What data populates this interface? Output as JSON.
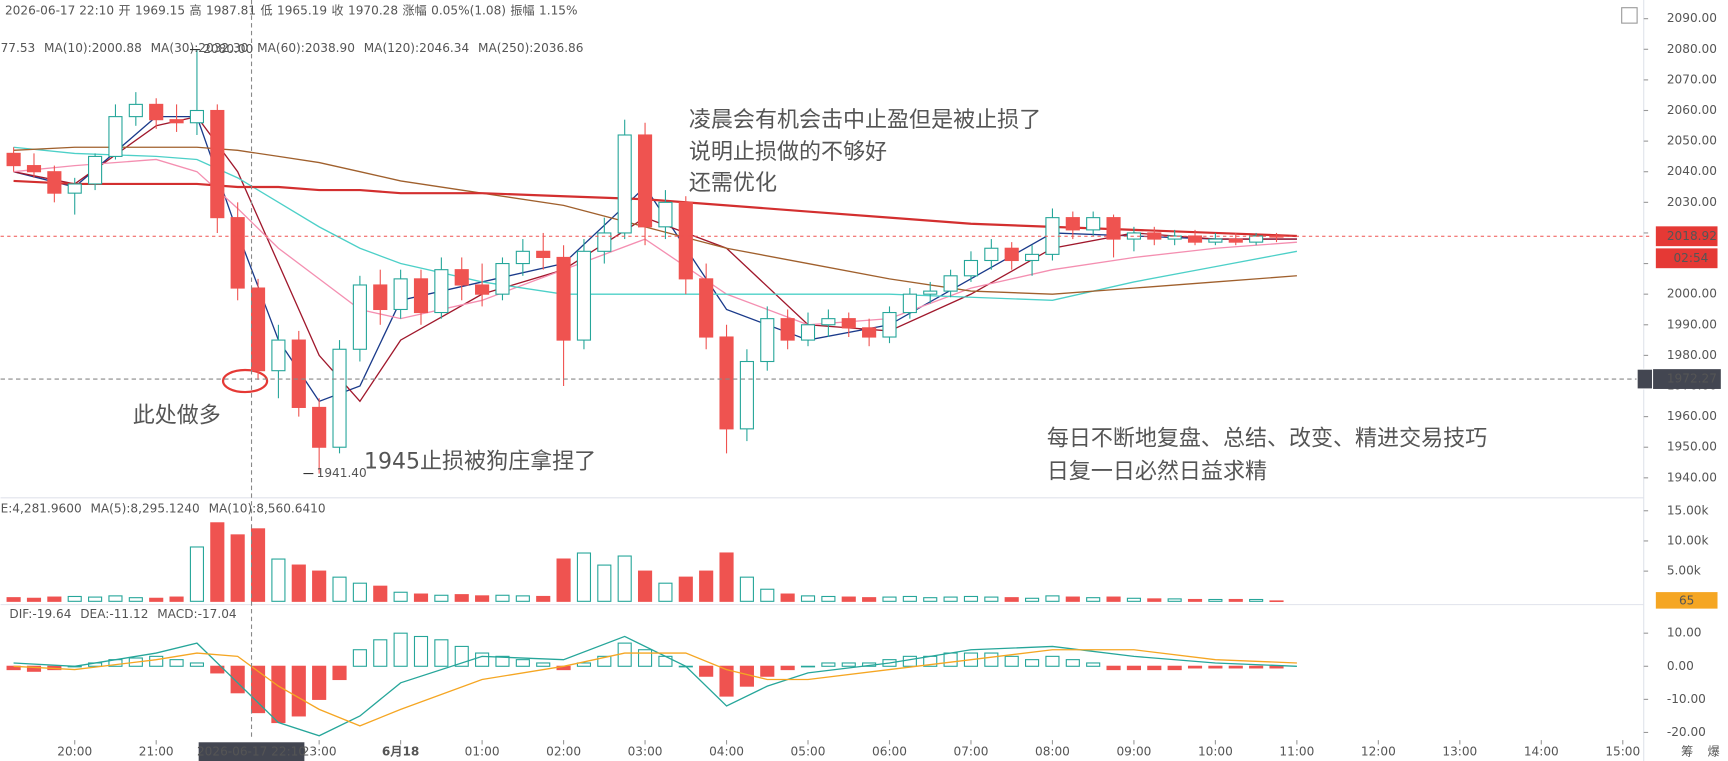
{
  "toolbar": {
    "quote": [
      "2026-06-17 22:10",
      "开",
      "1969.15",
      "高",
      "1987.81",
      "低",
      "1965.19",
      "收",
      "1970.28",
      "涨幅",
      "0.05%(1.08)",
      "振幅",
      "1.15%"
    ],
    "countdown": "02:54",
    "crosshair_time": "2026-06-17 22:10",
    "side_labels": [
      "筹",
      "爆"
    ]
  },
  "chart_data": [
    {
      "type": "candlestick",
      "up_color": "#26a69a",
      "down_color": "#ef5350",
      "x": [
        19.25,
        19.5,
        19.75,
        20,
        20.25,
        20.5,
        20.75,
        21,
        21.25,
        21.5,
        21.75,
        22,
        22.25,
        22.5,
        22.75,
        23,
        23.25,
        23.5,
        23.75,
        24,
        24.25,
        24.5,
        24.75,
        25,
        25.25,
        25.5,
        25.75,
        26,
        26.25,
        26.5,
        26.75,
        27,
        27.25,
        27.5,
        27.75,
        28,
        28.25,
        28.5,
        28.75,
        29,
        29.25,
        29.5,
        29.75,
        30,
        30.25,
        30.5,
        30.75,
        31,
        31.25,
        31.5,
        31.75,
        32,
        32.25,
        32.5,
        32.75,
        33,
        33.25,
        33.5,
        33.75,
        34,
        34.25,
        34.5,
        34.75
      ],
      "ohlc": [
        [
          2046,
          2048,
          2040,
          2042
        ],
        [
          2042,
          2046,
          2038,
          2040
        ],
        [
          2040,
          2042,
          2030,
          2033
        ],
        [
          2033,
          2038,
          2026,
          2036
        ],
        [
          2036,
          2046,
          2034,
          2045
        ],
        [
          2045,
          2062,
          2044,
          2058
        ],
        [
          2058,
          2066,
          2055,
          2062
        ],
        [
          2062,
          2064,
          2054,
          2057
        ],
        [
          2057,
          2062,
          2053,
          2056
        ],
        [
          2056,
          2080,
          2052,
          2060
        ],
        [
          2060,
          2062,
          2020,
          2025
        ],
        [
          2025,
          2030,
          1998,
          2002
        ],
        [
          2002,
          2005,
          1972,
          1975
        ],
        [
          1975,
          1990,
          1966,
          1985
        ],
        [
          1985,
          1988,
          1960,
          1963
        ],
        [
          1963,
          1966,
          1941.4,
          1950
        ],
        [
          1950,
          1985,
          1948,
          1982
        ],
        [
          1982,
          2006,
          1978,
          2003
        ],
        [
          2003,
          2008,
          1990,
          1995
        ],
        [
          1995,
          2008,
          1992,
          2005
        ],
        [
          2005,
          2008,
          1990,
          1994
        ],
        [
          1994,
          2012,
          1992,
          2008
        ],
        [
          2008,
          2012,
          1998,
          2003
        ],
        [
          2003,
          2010,
          1996,
          2000
        ],
        [
          2000,
          2012,
          1998,
          2010
        ],
        [
          2010,
          2018,
          2006,
          2014
        ],
        [
          2014,
          2020,
          2008,
          2012
        ],
        [
          2012,
          2016,
          1970,
          1985
        ],
        [
          1985,
          2018,
          1982,
          2014
        ],
        [
          2014,
          2025,
          2010,
          2020
        ],
        [
          2020,
          2057,
          2018,
          2052
        ],
        [
          2052,
          2056,
          2016,
          2022
        ],
        [
          2022,
          2034,
          2018,
          2030
        ],
        [
          2030,
          2032,
          2000,
          2005
        ],
        [
          2005,
          2010,
          1982,
          1986
        ],
        [
          1986,
          1990,
          1948,
          1956
        ],
        [
          1956,
          1982,
          1952,
          1978
        ],
        [
          1978,
          1996,
          1975,
          1992
        ],
        [
          1992,
          1995,
          1982,
          1985
        ],
        [
          1985,
          1994,
          1983,
          1990
        ],
        [
          1990,
          1995,
          1986,
          1992
        ],
        [
          1992,
          1994,
          1986,
          1989
        ],
        [
          1989,
          1992,
          1983,
          1986
        ],
        [
          1986,
          1996,
          1984,
          1994
        ],
        [
          1994,
          2002,
          1992,
          2000
        ],
        [
          2000,
          2004,
          1997,
          2001
        ],
        [
          2001,
          2008,
          1999,
          2006
        ],
        [
          2006,
          2014,
          2004,
          2011
        ],
        [
          2011,
          2018,
          2008,
          2015
        ],
        [
          2015,
          2017,
          2008,
          2011
        ],
        [
          2011,
          2016,
          2006,
          2013
        ],
        [
          2013,
          2028,
          2011,
          2025
        ],
        [
          2025,
          2027,
          2018,
          2021
        ],
        [
          2021,
          2027,
          2019,
          2025
        ],
        [
          2025,
          2026,
          2012,
          2018
        ],
        [
          2018,
          2022,
          2014,
          2020
        ],
        [
          2020,
          2022,
          2016,
          2018
        ],
        [
          2018,
          2021,
          2016,
          2019
        ],
        [
          2019,
          2021,
          2016,
          2017
        ],
        [
          2017,
          2020,
          2016,
          2018
        ],
        [
          2018,
          2020,
          2016,
          2017
        ],
        [
          2017,
          2020,
          2016,
          2019
        ],
        [
          2019,
          2020,
          2017,
          2018.92
        ]
      ],
      "xlim": [
        19.09,
        39.23
      ],
      "xticks": [
        {
          "value": 20,
          "label": "20:00"
        },
        {
          "value": 21,
          "label": "21:00"
        },
        {
          "value": 23,
          "label": "23:00"
        },
        {
          "value": 24,
          "label": "6月18"
        },
        {
          "value": 25,
          "label": "01:00"
        },
        {
          "value": 26,
          "label": "02:00"
        },
        {
          "value": 27,
          "label": "03:00"
        },
        {
          "value": 28,
          "label": "04:00"
        },
        {
          "value": 29,
          "label": "05:00"
        },
        {
          "value": 30,
          "label": "06:00"
        },
        {
          "value": 31,
          "label": "07:00"
        },
        {
          "value": 32,
          "label": "08:00"
        },
        {
          "value": 33,
          "label": "09:00"
        },
        {
          "value": 34,
          "label": "10:00"
        },
        {
          "value": 35,
          "label": "11:00"
        },
        {
          "value": 36,
          "label": "12:00"
        },
        {
          "value": 37,
          "label": "13:00"
        },
        {
          "value": 38,
          "label": "14:00"
        },
        {
          "value": 39,
          "label": "15:00"
        }
      ],
      "ylim": [
        1934.2,
        2096.1
      ],
      "yticks": [
        {
          "value": 1940,
          "label": "1940.00"
        },
        {
          "value": 1950,
          "label": "1950.00"
        },
        {
          "value": 1960,
          "label": "1960.00"
        },
        {
          "value": 1970,
          "label": "1970.00"
        },
        {
          "value": 1980,
          "label": "1980.00"
        },
        {
          "value": 1990,
          "label": "1990.00"
        },
        {
          "value": 2000,
          "label": "2000.00"
        },
        {
          "value": 2010,
          "label": "2010.00"
        },
        {
          "value": 2020,
          "label": "2020.00"
        },
        {
          "value": 2030,
          "label": "2030.00"
        },
        {
          "value": 2040,
          "label": "2040.00"
        },
        {
          "value": 2050,
          "label": "2050.00"
        },
        {
          "value": 2060,
          "label": "2060.00"
        },
        {
          "value": 2070,
          "label": "2070.00"
        },
        {
          "value": 2080,
          "label": "2080.00"
        },
        {
          "value": 2090,
          "label": "2090.00"
        }
      ],
      "lines": [
        {
          "name": "77.53",
          "color": "#1a3a8a",
          "x": [
            19.25,
            20,
            21,
            21.5,
            22,
            22.5,
            23,
            23.5,
            24,
            25,
            26,
            27,
            28,
            29,
            30,
            31,
            32,
            33,
            34,
            35
          ],
          "values": [
            2040,
            2035,
            2058,
            2058,
            2020,
            1985,
            1965,
            1970,
            1998,
            2004,
            2010,
            2035,
            1995,
            1985,
            1990,
            2005,
            2020,
            2019,
            2018,
            2018
          ]
        },
        {
          "name": "MA(10):2000.88",
          "color": "#a0182c",
          "x": [
            19.25,
            20,
            21,
            21.5,
            22,
            22.5,
            23,
            23.5,
            24,
            25,
            26,
            27,
            28,
            29,
            30,
            31,
            32,
            33,
            34,
            35
          ],
          "values": [
            2040,
            2036,
            2055,
            2058,
            2040,
            2010,
            1980,
            1965,
            1985,
            2000,
            2008,
            2025,
            2015,
            1990,
            1988,
            2000,
            2015,
            2020,
            2018,
            2018
          ]
        },
        {
          "name": "MA(30):2032.30",
          "color": "#f48fb1",
          "x": [
            19.25,
            20,
            21,
            21.5,
            22,
            22.5,
            23,
            23.5,
            24,
            25,
            26,
            27,
            28,
            29,
            30,
            31,
            32,
            33,
            34,
            35
          ],
          "values": [
            2040,
            2042,
            2044,
            2040,
            2028,
            2015,
            2005,
            1995,
            1992,
            1998,
            2008,
            2018,
            2000,
            1990,
            1992,
            2002,
            2008,
            2012,
            2015,
            2017
          ]
        },
        {
          "name": "MA(60):2038.90",
          "color": "#4dd0c8",
          "x": [
            19.25,
            20,
            21,
            21.5,
            22,
            22.5,
            23,
            23.5,
            24,
            25,
            26,
            27,
            28,
            29,
            30,
            31,
            32,
            33,
            34,
            35
          ],
          "values": [
            2048,
            2046,
            2045,
            2044,
            2038,
            2030,
            2022,
            2015,
            2010,
            2004,
            2000,
            2000,
            2000,
            2000,
            2000,
            1999,
            1998,
            2004,
            2009,
            2014
          ]
        },
        {
          "name": "MA(120):2046.34",
          "color": "#a0602d",
          "x": [
            19.25,
            20,
            21,
            21.5,
            22,
            22.5,
            23,
            23.5,
            24,
            25,
            26,
            27,
            28,
            29,
            30,
            31,
            32,
            33,
            34,
            35
          ],
          "values": [
            2047,
            2048,
            2048,
            2048,
            2047,
            2045,
            2043,
            2040,
            2037,
            2033,
            2029,
            2022,
            2015,
            2010,
            2005,
            2001,
            2000,
            2002,
            2004,
            2006
          ]
        },
        {
          "name": "MA(250):2036.86",
          "color": "#d32f2f",
          "x": [
            19.25,
            20,
            21,
            21.5,
            22,
            22.5,
            23,
            23.5,
            24,
            25,
            26,
            27,
            28,
            29,
            30,
            31,
            32,
            33,
            34,
            35
          ],
          "values": [
            2037,
            2036,
            2036,
            2036,
            2035,
            2035,
            2034,
            2034,
            2033,
            2033,
            2032,
            2031,
            2029,
            2027,
            2025,
            2023,
            2022,
            2021,
            2020,
            2019
          ]
        }
      ],
      "crosshair": {
        "x": 22.17,
        "price": 1972.27
      },
      "high_label": "2080.00",
      "low_label": "1941.40",
      "annotation_color": "#e53935",
      "annotations": [
        "凌晨会有机会击中止盈但是被止损了",
        "说明止损做的不够好",
        "还需优化",
        "此处做多",
        "1945止损被狗庄拿捏了",
        "每日不断地复盘、总结、改变、精进交易技巧",
        "日复一日必然日益求精"
      ]
    },
    {
      "type": "bar",
      "legend": [
        "E:4,281.9600",
        "MA(5):8,295.1240",
        "MA(10):8,560.6410"
      ],
      "legend_colors": [
        "#666666",
        "#26a69a",
        "#f5a623"
      ],
      "values": [
        600,
        500,
        700,
        800,
        700,
        900,
        600,
        500,
        700,
        9000,
        13000,
        11000,
        12000,
        7000,
        6000,
        5000,
        4000,
        3000,
        2500,
        1500,
        1200,
        1000,
        1100,
        900,
        1000,
        900,
        800,
        7000,
        8000,
        6000,
        7500,
        5000,
        3000,
        4000,
        5000,
        8000,
        4000,
        2000,
        1200,
        900,
        800,
        700,
        600,
        700,
        800,
        600,
        700,
        800,
        700,
        600,
        500,
        900,
        700,
        600,
        700,
        500,
        400,
        400,
        300,
        300,
        300,
        300,
        65
      ],
      "ylim": [
        0,
        16600
      ],
      "yticks": [
        {
          "value": 5000,
          "label": "5.00k"
        },
        {
          "value": 10000,
          "label": "10.00k"
        },
        {
          "value": 15000,
          "label": "15.00k"
        }
      ],
      "last_color": "#f5a623"
    },
    {
      "type": "macd",
      "histogram": [
        -1,
        -1.5,
        -1,
        0,
        1,
        2,
        2.5,
        3,
        2,
        1,
        -2,
        -8,
        -14,
        -17,
        -15,
        -10,
        -4,
        5,
        8,
        10,
        9,
        8,
        6,
        4,
        3,
        2,
        1,
        -1,
        1,
        3,
        7,
        5,
        3,
        0,
        -3,
        -9,
        -6,
        -3,
        -1,
        0,
        1,
        1,
        1,
        2,
        3,
        3,
        4,
        4,
        4,
        3,
        2,
        3,
        2,
        1,
        -1,
        -1,
        -1,
        -1,
        -0.5,
        -0.5,
        -0.5,
        -0.5,
        -0.5
      ],
      "series": [
        {
          "name": "DIF:-19.64",
          "color": "#26a69a",
          "x": [
            19.25,
            20,
            21,
            21.5,
            22,
            22.5,
            23,
            23.5,
            24,
            25,
            26,
            26.75,
            27.5,
            28,
            28.5,
            29,
            30,
            31,
            32,
            33,
            34,
            35
          ],
          "values": [
            1,
            0,
            4,
            7,
            -5,
            -17,
            -21,
            -15,
            -5,
            3,
            2,
            9,
            0,
            -12,
            -6,
            -2,
            1,
            5,
            6,
            3,
            1,
            0
          ]
        },
        {
          "name": "DEA:-11.12",
          "color": "#f5a623",
          "x": [
            19.25,
            20,
            21,
            21.5,
            22,
            22.5,
            23,
            23.5,
            24,
            25,
            26,
            26.75,
            27.5,
            28,
            28.5,
            29,
            30,
            31,
            32,
            33,
            34,
            35
          ],
          "values": [
            0,
            -1,
            2,
            4,
            3,
            -6,
            -13,
            -18,
            -13,
            -4,
            0,
            4,
            4,
            -1,
            -4,
            -4,
            -1,
            2,
            5,
            5,
            2,
            1
          ]
        }
      ],
      "macd_label": "MACD:-17.04",
      "macd_label_color": "#e53935",
      "ylim": [
        -22.3,
        18.3
      ],
      "yticks": [
        {
          "value": -20,
          "label": "-20.00"
        },
        {
          "value": -10,
          "label": "-10.00"
        },
        {
          "value": 0,
          "label": "0.00"
        },
        {
          "value": 10,
          "label": "10.00"
        }
      ]
    }
  ]
}
